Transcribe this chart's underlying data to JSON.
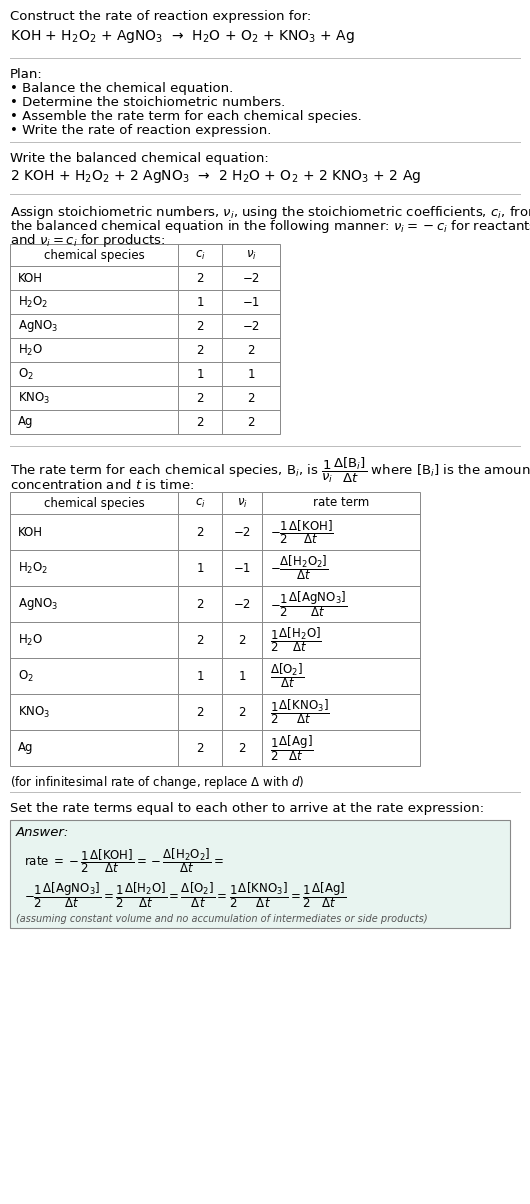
{
  "bg_color": "#ffffff",
  "title_line1": "Construct the rate of reaction expression for:",
  "reaction_unbalanced": "KOH + H$_2$O$_2$ + AgNO$_3$  →  H$_2$O + O$_2$ + KNO$_3$ + Ag",
  "plan_title": "Plan:",
  "plan_items": [
    "• Balance the chemical equation.",
    "• Determine the stoichiometric numbers.",
    "• Assemble the rate term for each chemical species.",
    "• Write the rate of reaction expression."
  ],
  "balanced_label": "Write the balanced chemical equation:",
  "reaction_balanced": "2 KOH + H$_2$O$_2$ + 2 AgNO$_3$  →  2 H$_2$O + O$_2$ + 2 KNO$_3$ + 2 Ag",
  "stoich_intro_l1": "Assign stoichiometric numbers, $\\nu_i$, using the stoichiometric coefficients, $c_i$, from",
  "stoich_intro_l2": "the balanced chemical equation in the following manner: $\\nu_i = -c_i$ for reactants",
  "stoich_intro_l3": "and $\\nu_i = c_i$ for products:",
  "table1_headers": [
    "chemical species",
    "$c_i$",
    "$\\nu_i$"
  ],
  "table1_rows": [
    [
      "KOH",
      "2",
      "−2"
    ],
    [
      "H$_2$O$_2$",
      "1",
      "−1"
    ],
    [
      "AgNO$_3$",
      "2",
      "−2"
    ],
    [
      "H$_2$O",
      "2",
      "2"
    ],
    [
      "O$_2$",
      "1",
      "1"
    ],
    [
      "KNO$_3$",
      "2",
      "2"
    ],
    [
      "Ag",
      "2",
      "2"
    ]
  ],
  "rate_intro_l1": "The rate term for each chemical species, B$_i$, is $\\dfrac{1}{\\nu_i}\\dfrac{\\Delta[\\mathrm{B}_i]}{\\Delta t}$ where [B$_i$] is the amount",
  "rate_intro_l2": "concentration and $t$ is time:",
  "table2_headers": [
    "chemical species",
    "$c_i$",
    "$\\nu_i$",
    "rate term"
  ],
  "table2_rows": [
    [
      "KOH",
      "2",
      "−2",
      "$-\\dfrac{1}{2}\\dfrac{\\Delta[\\mathrm{KOH}]}{\\Delta t}$"
    ],
    [
      "H$_2$O$_2$",
      "1",
      "−1",
      "$-\\dfrac{\\Delta[\\mathrm{H_2O_2}]}{\\Delta t}$"
    ],
    [
      "AgNO$_3$",
      "2",
      "−2",
      "$-\\dfrac{1}{2}\\dfrac{\\Delta[\\mathrm{AgNO_3}]}{\\Delta t}$"
    ],
    [
      "H$_2$O",
      "2",
      "2",
      "$\\dfrac{1}{2}\\dfrac{\\Delta[\\mathrm{H_2O}]}{\\Delta t}$"
    ],
    [
      "O$_2$",
      "1",
      "1",
      "$\\dfrac{\\Delta[\\mathrm{O_2}]}{\\Delta t}$"
    ],
    [
      "KNO$_3$",
      "2",
      "2",
      "$\\dfrac{1}{2}\\dfrac{\\Delta[\\mathrm{KNO_3}]}{\\Delta t}$"
    ],
    [
      "Ag",
      "2",
      "2",
      "$\\dfrac{1}{2}\\dfrac{\\Delta[\\mathrm{Ag}]}{\\Delta t}$"
    ]
  ],
  "infinitesimal_note": "(for infinitesimal rate of change, replace Δ with $d$)",
  "set_equal_label": "Set the rate terms equal to each other to arrive at the rate expression:",
  "answer_label": "Answer:",
  "answer_box_color": "#e8f4f0",
  "answer_line1": "rate $= -\\dfrac{1}{2}\\dfrac{\\Delta[\\mathrm{KOH}]}{\\Delta t} = -\\dfrac{\\Delta[\\mathrm{H_2O_2}]}{\\Delta t} =$",
  "answer_line2": "$-\\dfrac{1}{2}\\dfrac{\\Delta[\\mathrm{AgNO_3}]}{\\Delta t} = \\dfrac{1}{2}\\dfrac{\\Delta[\\mathrm{H_2O}]}{\\Delta t} = \\dfrac{\\Delta[\\mathrm{O_2}]}{\\Delta t} = \\dfrac{1}{2}\\dfrac{\\Delta[\\mathrm{KNO_3}]}{\\Delta t} = \\dfrac{1}{2}\\dfrac{\\Delta[\\mathrm{Ag}]}{\\Delta t}$",
  "answer_note": "(assuming constant volume and no accumulation of intermediates or side products)",
  "fs": 9.5,
  "fs_small": 8.5,
  "fs_math": 8.5
}
